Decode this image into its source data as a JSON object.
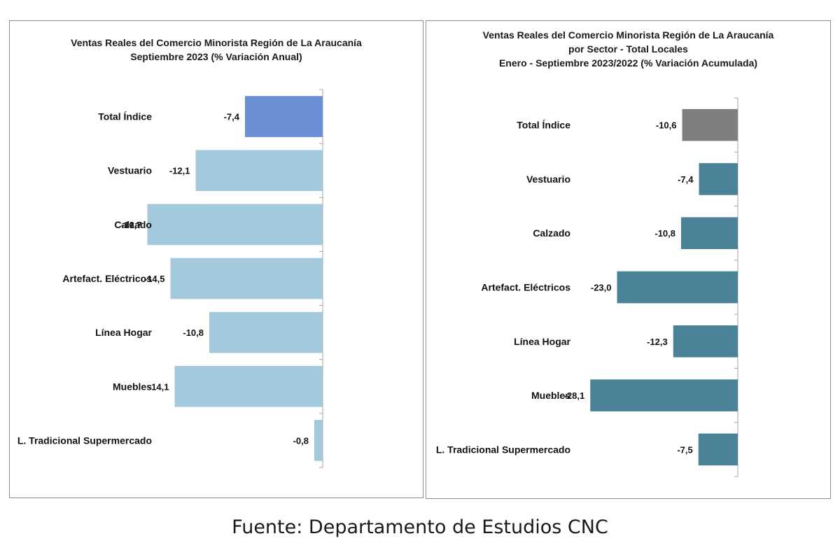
{
  "chart_data": [
    {
      "type": "bar",
      "orientation": "horizontal",
      "title_lines": [
        "Ventas Reales del Comercio Minorista  Región de La Araucanía",
        "Septiembre 2023 (% Variación Anual)"
      ],
      "categories": [
        "Total Índice",
        "Vestuario",
        "Calzado",
        "Artefact. Eléctricos",
        "Línea Hogar",
        "Muebles",
        "L. Tradicional Supermercado"
      ],
      "values": [
        -7.4,
        -12.1,
        -16.7,
        -14.5,
        -10.8,
        -14.1,
        -0.8
      ],
      "data_labels": [
        "-7,4",
        "-12,1",
        "-16,7",
        "-14,5",
        "-10,8",
        "-14,1",
        "-0,8"
      ],
      "bar_colors": [
        "#6a8fd4",
        "#a3cadc",
        "#a3cadc",
        "#a3cadc",
        "#a3cadc",
        "#a3cadc",
        "#a3cadc"
      ],
      "xlim": [
        -25,
        0
      ],
      "grid": false
    },
    {
      "type": "bar",
      "orientation": "horizontal",
      "title_lines": [
        "Ventas Reales del Comercio Minorista Región de La Araucanía",
        "por Sector - Total Locales",
        "Enero - Septiembre 2023/2022 (% Variación Acumulada)"
      ],
      "categories": [
        "Total Índice",
        "Vestuario",
        "Calzado",
        "Artefact. Eléctricos",
        "Línea Hogar",
        "Muebles",
        "L. Tradicional Supermercado"
      ],
      "values": [
        -10.6,
        -7.4,
        -10.8,
        -23.0,
        -12.3,
        -28.1,
        -7.5
      ],
      "data_labels": [
        "-10,6",
        "-7,4",
        "-10,8",
        "-23,0",
        "-12,3",
        "-28,1",
        "-7,5"
      ],
      "bar_colors": [
        "#7f7f7f",
        "#4a8398",
        "#4a8398",
        "#4a8398",
        "#4a8398",
        "#4a8398",
        "#4a8398"
      ],
      "xlim": [
        -30,
        0
      ],
      "grid": false
    }
  ],
  "source": "Fuente: Departamento de Estudios CNC"
}
